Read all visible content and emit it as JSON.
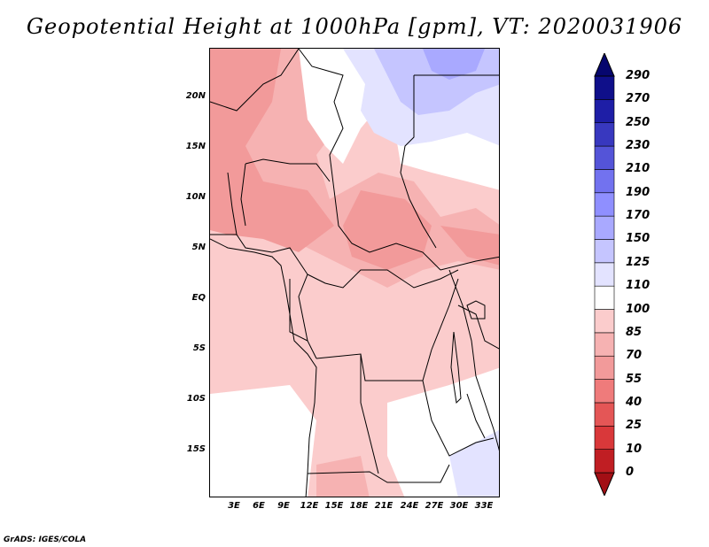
{
  "title": "Geopotential Height at 1000hPa [gpm], VT: 2020031906",
  "y_axis_labels": [
    "20N",
    "15N",
    "10N",
    "5N",
    "EQ",
    "5S",
    "10S",
    "15S"
  ],
  "x_axis_labels": [
    "3E",
    "6E",
    "9E",
    "12E",
    "15E",
    "18E",
    "21E",
    "24E",
    "27E",
    "30E",
    "33E"
  ],
  "colorbar": {
    "levels": [
      "0",
      "10",
      "25",
      "40",
      "55",
      "70",
      "85",
      "100",
      "110",
      "125",
      "150",
      "170",
      "190",
      "210",
      "230",
      "250",
      "270",
      "290"
    ],
    "colors": [
      "#a30f15",
      "#c01e23",
      "#d9383a",
      "#e45656",
      "#ef7b7b",
      "#f29a9a",
      "#f6b2b2",
      "#fbcccc",
      "#ffffff",
      "#e3e3ff",
      "#c5c5ff",
      "#a9a9ff",
      "#8f8fff",
      "#7272ef",
      "#5454d8",
      "#3838bf",
      "#1e1ea6",
      "#0f0f8a",
      "#06066e"
    ]
  },
  "credit": "GrADS: IGES/COLA"
}
